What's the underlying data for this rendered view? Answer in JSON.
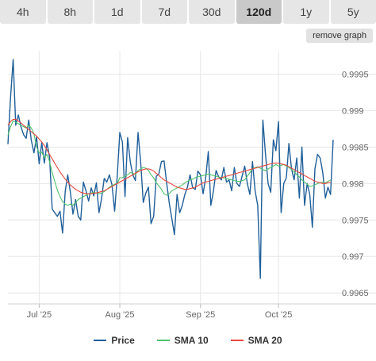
{
  "tabs": [
    {
      "label": "4h",
      "active": false
    },
    {
      "label": "8h",
      "active": false
    },
    {
      "label": "1d",
      "active": false
    },
    {
      "label": "7d",
      "active": false
    },
    {
      "label": "30d",
      "active": false
    },
    {
      "label": "120d",
      "active": true
    },
    {
      "label": "1y",
      "active": false
    },
    {
      "label": "5y",
      "active": false
    }
  ],
  "remove_graph_label": "remove graph",
  "chart_data": {
    "type": "line",
    "ylim": [
      0.99635,
      0.99982
    ],
    "y_ticks": [
      0.9965,
      0.997,
      0.9975,
      0.998,
      0.9985,
      0.999,
      0.9995
    ],
    "y_tick_labels": [
      "0.9965",
      "0.997",
      "0.9975",
      "0.998",
      "0.9985",
      "0.999",
      "0.9995"
    ],
    "x_ticks": [
      {
        "label": "Jul '25",
        "index": 12
      },
      {
        "label": "Aug '25",
        "index": 43
      },
      {
        "label": "Sep '25",
        "index": 74
      },
      {
        "label": "Oct '25",
        "index": 104
      }
    ],
    "grid": true,
    "legend_position": "bottom-center",
    "series": [
      {
        "name": "Price",
        "color": "#1f5f9a",
        "values": [
          0.99854,
          0.99918,
          0.9997,
          0.9988,
          0.99894,
          0.99878,
          0.99867,
          0.99862,
          0.99887,
          0.99859,
          0.99842,
          0.99864,
          0.99827,
          0.99856,
          0.99828,
          0.99856,
          0.99836,
          0.99765,
          0.9976,
          0.99755,
          0.99762,
          0.99732,
          0.99789,
          0.99812,
          0.99788,
          0.99758,
          0.99778,
          0.99755,
          0.9975,
          0.99802,
          0.9979,
          0.99776,
          0.99794,
          0.99783,
          0.99801,
          0.9976,
          0.9978,
          0.99807,
          0.99802,
          0.99812,
          0.99798,
          0.99762,
          0.9981,
          0.9987,
          0.99857,
          0.99782,
          0.99863,
          0.9983,
          0.99812,
          0.99804,
          0.9987,
          0.9983,
          0.99774,
          0.99787,
          0.99795,
          0.99745,
          0.99755,
          0.9981,
          0.99813,
          0.9983,
          0.99831,
          0.99801,
          0.99773,
          0.99752,
          0.9973,
          0.99785,
          0.9976,
          0.9977,
          0.99785,
          0.99795,
          0.99812,
          0.99794,
          0.99792,
          0.99817,
          0.99812,
          0.99786,
          0.99808,
          0.99844,
          0.9977,
          0.9979,
          0.99818,
          0.99809,
          0.99805,
          0.99822,
          0.99802,
          0.99805,
          0.9979,
          0.99822,
          0.998,
          0.99796,
          0.9981,
          0.99824,
          0.998,
          0.99785,
          0.9983,
          0.9979,
          0.9977,
          0.9967,
          0.99887,
          0.9984,
          0.998,
          0.99788,
          0.9986,
          0.99845,
          0.99885,
          0.9976,
          0.998,
          0.99808,
          0.99855,
          0.9982,
          0.99805,
          0.99835,
          0.9978,
          0.9985,
          0.9977,
          0.998,
          0.99785,
          0.9974,
          0.9982,
          0.9984,
          0.99835,
          0.99815,
          0.9978,
          0.99795,
          0.99785,
          0.9986
        ]
      },
      {
        "name": "SMA 10",
        "color": "#4fc36b",
        "values": [
          0.99866,
          0.99878,
          0.99886,
          0.99884,
          0.99882,
          0.9988,
          0.99878,
          0.99876,
          0.9988,
          0.99876,
          0.99868,
          0.9985,
          0.99842,
          0.99843,
          0.99835,
          0.9984,
          0.9983,
          0.99815,
          0.99803,
          0.99791,
          0.99782,
          0.99775,
          0.99772,
          0.9977,
          0.99772,
          0.9977,
          0.99774,
          0.99778,
          0.9978,
          0.99782,
          0.99784,
          0.99786,
          0.99787,
          0.99788,
          0.99787,
          0.99786,
          0.99787,
          0.99789,
          0.99792,
          0.99795,
          0.99797,
          0.99799,
          0.998,
          0.99808,
          0.99808,
          0.9981,
          0.99812,
          0.99815,
          0.99814,
          0.99812,
          0.99818,
          0.9982,
          0.99822,
          0.99821,
          0.99818,
          0.99812,
          0.99808,
          0.99801,
          0.99797,
          0.99792,
          0.99786,
          0.99784,
          0.99786,
          0.9979,
          0.99792,
          0.99794,
          0.99796,
          0.99798,
          0.99801,
          0.99803,
          0.99805,
          0.99806,
          0.99808,
          0.99809,
          0.9981,
          0.99811,
          0.99812,
          0.99813,
          0.99812,
          0.99811,
          0.9981,
          0.99809,
          0.99808,
          0.99808,
          0.99807,
          0.99806,
          0.99805,
          0.99804,
          0.99803,
          0.99803,
          0.99804,
          0.99805,
          0.9981,
          0.99815,
          0.9982,
          0.99822,
          0.99823,
          0.99821,
          0.99819,
          0.99818,
          0.9982,
          0.99822,
          0.99824,
          0.99826,
          0.99824,
          0.99825,
          0.99826,
          0.99824,
          0.99822,
          0.99819,
          0.99816,
          0.99812,
          0.99809,
          0.99805,
          0.99802,
          0.99799,
          0.99796,
          0.99797,
          0.99798,
          0.998,
          0.99801,
          0.99802,
          0.99801,
          0.99803,
          0.99805
        ]
      },
      {
        "name": "SMA 20",
        "color": "#e8463e",
        "values": [
          0.9988,
          0.99885,
          0.99888,
          0.99888,
          0.99886,
          0.99883,
          0.9988,
          0.99877,
          0.99874,
          0.99871,
          0.99868,
          0.99865,
          0.99861,
          0.99857,
          0.99852,
          0.99846,
          0.9984,
          0.99834,
          0.99828,
          0.99822,
          0.99816,
          0.99811,
          0.99806,
          0.99802,
          0.99798,
          0.99795,
          0.99792,
          0.9979,
          0.99788,
          0.99787,
          0.99786,
          0.99786,
          0.99786,
          0.99787,
          0.99787,
          0.99788,
          0.99789,
          0.9979,
          0.99792,
          0.99794,
          0.99796,
          0.99798,
          0.998,
          0.99802,
          0.99804,
          0.99806,
          0.99808,
          0.9981,
          0.99812,
          0.99814,
          0.99816,
          0.99818,
          0.99819,
          0.9982,
          0.9982,
          0.99819,
          0.99817,
          0.99814,
          0.99811,
          0.99808,
          0.99805,
          0.99803,
          0.99801,
          0.99799,
          0.99797,
          0.99795,
          0.99794,
          0.99793,
          0.99792,
          0.99792,
          0.99793,
          0.99794,
          0.99795,
          0.99797,
          0.99799,
          0.99801,
          0.99802,
          0.99803,
          0.99804,
          0.99805,
          0.99806,
          0.99807,
          0.99808,
          0.99809,
          0.9981,
          0.99811,
          0.99812,
          0.99813,
          0.99814,
          0.99815,
          0.99816,
          0.99817,
          0.99818,
          0.99819,
          0.9982,
          0.99821,
          0.99822,
          0.99823,
          0.99824,
          0.99825,
          0.99826,
          0.99827,
          0.99828,
          0.99828,
          0.99828,
          0.99827,
          0.99826,
          0.99825,
          0.99823,
          0.99821,
          0.99819,
          0.99817,
          0.99815,
          0.99813,
          0.99811,
          0.99809,
          0.99807,
          0.99805,
          0.99803,
          0.99802,
          0.99801,
          0.998,
          0.998,
          0.99801,
          0.99802
        ]
      }
    ]
  }
}
